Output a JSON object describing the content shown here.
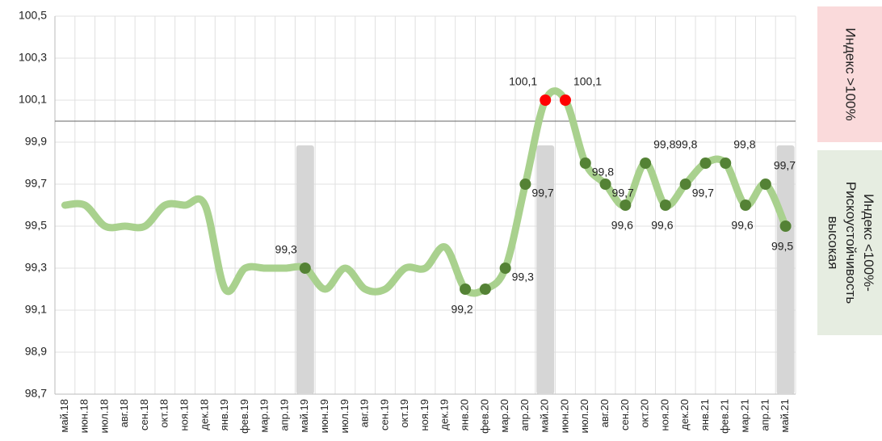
{
  "chart_data": {
    "type": "line",
    "categories": [
      "май.18",
      "июн.18",
      "июл.18",
      "авг.18",
      "сен.18",
      "окт.18",
      "ноя.18",
      "дек.18",
      "янв.19",
      "фев.19",
      "мар.19",
      "апр.19",
      "май.19",
      "июн.19",
      "июл.19",
      "авг.19",
      "сен.19",
      "окт.19",
      "ноя.19",
      "дек.19",
      "янв.20",
      "фев.20",
      "мар.20",
      "апр.20",
      "май.20",
      "июн.20",
      "июл.20",
      "авг.20",
      "сен.20",
      "окт.20",
      "ноя.20",
      "дек.20",
      "янв.21",
      "фев.21",
      "мар.21",
      "апр.21",
      "май.21"
    ],
    "series": [
      {
        "color": "#a9d18e",
        "values": [
          99.6,
          99.6,
          99.5,
          99.5,
          99.5,
          99.6,
          99.6,
          99.6,
          99.2,
          99.3,
          99.3,
          99.3,
          99.3,
          99.2,
          99.3,
          99.2,
          99.2,
          99.3,
          99.3,
          99.4,
          99.2,
          99.2,
          99.3,
          99.7,
          100.1,
          100.1,
          99.8,
          99.7,
          99.6,
          99.8,
          99.6,
          99.7,
          99.8,
          99.8,
          99.6,
          99.7,
          99.5
        ],
        "value_labels": [
          null,
          null,
          null,
          null,
          null,
          null,
          null,
          null,
          null,
          null,
          null,
          null,
          "99,3",
          null,
          null,
          null,
          null,
          null,
          null,
          null,
          "99,2",
          null,
          "99,3",
          "99,7",
          "100,1",
          "100,1",
          "99,8",
          "99,7",
          "99,6",
          "99,8",
          "99,6",
          "99,7",
          "99,8",
          "99,8",
          "99,6",
          "99,7",
          "99,5"
        ],
        "marker_colors": [
          null,
          null,
          null,
          null,
          null,
          null,
          null,
          null,
          null,
          null,
          null,
          null,
          "#548235",
          null,
          null,
          null,
          null,
          null,
          null,
          null,
          "#548235",
          "#548235",
          "#548235",
          "#548235",
          "#ff0000",
          "#ff0000",
          "#548235",
          "#548235",
          "#548235",
          "#548235",
          "#548235",
          "#548235",
          "#548235",
          "#548235",
          "#548235",
          "#548235",
          "#548235"
        ]
      }
    ],
    "ylim": [
      98.7,
      100.5
    ],
    "yticks": [
      {
        "value": 98.7,
        "label": "98,7"
      },
      {
        "value": 98.9,
        "label": "98,9"
      },
      {
        "value": 99.1,
        "label": "99,1"
      },
      {
        "value": 99.3,
        "label": "99,3"
      },
      {
        "value": 99.5,
        "label": "99,5"
      },
      {
        "value": 99.7,
        "label": "99,7"
      },
      {
        "value": 99.9,
        "label": "99,9"
      },
      {
        "value": 100.1,
        "label": "100,1"
      },
      {
        "value": 100.3,
        "label": "100,3"
      },
      {
        "value": 100.5,
        "label": "100,5"
      }
    ],
    "reference_line": 100,
    "highlight": [
      12,
      24,
      36
    ],
    "grid": true,
    "annotations": [
      {
        "text": "Индекс >100%",
        "color": "#fadadb"
      },
      {
        "text": "Индекс <100%- Рискоустойчивость высокая",
        "color": "#e6ede1"
      }
    ]
  }
}
